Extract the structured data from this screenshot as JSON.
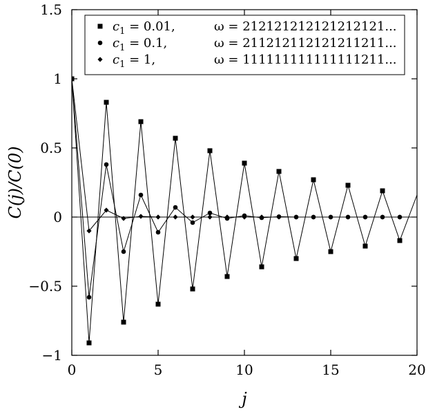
{
  "chart_data": {
    "type": "line",
    "xlabel": "j",
    "ylabel": "C(j)/C(0)",
    "xlim": [
      0,
      20
    ],
    "ylim": [
      -1,
      1.5
    ],
    "xticks": [
      0,
      5,
      10,
      15,
      20
    ],
    "xtick_labels": [
      "0",
      "5",
      "10",
      "15",
      "20"
    ],
    "yticks": [
      -1,
      -0.5,
      0,
      0.5,
      1,
      1.5
    ],
    "ytick_labels": [
      "−1",
      "−0.5",
      "0",
      "0.5",
      "1",
      "1.5"
    ],
    "grid": false,
    "legend_position": "top-right",
    "series": [
      {
        "name": "c1 = 0.01, ω = 212121212121212121...",
        "label_c": "c",
        "label_sub": "1",
        "label_val": " = 0.01,",
        "label_omega": "ω = 212121212121212121...",
        "marker": "square",
        "x": [
          0,
          1,
          2,
          3,
          4,
          5,
          6,
          7,
          8,
          9,
          10,
          11,
          12,
          13,
          14,
          15,
          16,
          17,
          18,
          19,
          20
        ],
        "y": [
          1.0,
          -0.91,
          0.83,
          -0.76,
          0.69,
          -0.63,
          0.57,
          -0.52,
          0.48,
          -0.43,
          0.39,
          -0.36,
          0.33,
          -0.3,
          0.27,
          -0.25,
          0.23,
          -0.21,
          0.19,
          -0.17,
          0.16
        ]
      },
      {
        "name": "c1 = 0.1, ω = 211212112121211211...",
        "label_c": "c",
        "label_sub": "1",
        "label_val": " = 0.1,",
        "label_omega": "ω = 211212112121211211...",
        "marker": "circle",
        "x": [
          0,
          1,
          2,
          3,
          4,
          5,
          6,
          7,
          8,
          9,
          10,
          11,
          12,
          13,
          14,
          15,
          16,
          17,
          18,
          19,
          20
        ],
        "y": [
          1.0,
          -0.58,
          0.38,
          -0.25,
          0.16,
          -0.11,
          0.07,
          -0.04,
          0.03,
          -0.01,
          0.01,
          -0.005,
          0.003,
          0.0,
          0.0,
          0.0,
          0.0,
          0.0,
          0.0,
          0.0,
          0.0
        ]
      },
      {
        "name": "c1 = 1, ω = 111111111111111211...",
        "label_c": "c",
        "label_sub": "1",
        "label_val": " = 1,",
        "label_omega": "ω = 111111111111111211...",
        "marker": "diamond",
        "x": [
          0,
          1,
          2,
          3,
          4,
          5,
          6,
          7,
          8,
          9,
          10,
          11,
          12,
          13,
          14,
          15,
          16,
          17,
          18,
          19,
          20
        ],
        "y": [
          1.0,
          -0.1,
          0.05,
          -0.01,
          0.005,
          0.0,
          0.0,
          0.0,
          0.0,
          0.0,
          0.0,
          0.0,
          0.0,
          0.0,
          0.0,
          0.0,
          0.0,
          0.0,
          0.0,
          0.0,
          0.0
        ]
      }
    ]
  }
}
